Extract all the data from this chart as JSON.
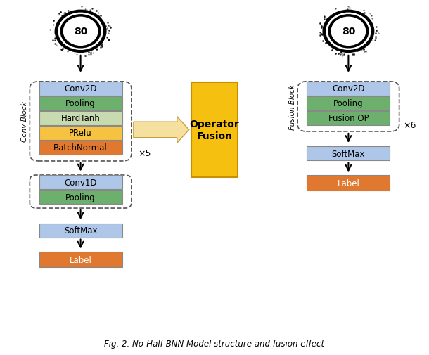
{
  "title": "Fig. 2. No-Half-BNN Model structure and fusion effect",
  "bg_color": "#ffffff",
  "left_block": {
    "label": "Conv Block",
    "boxes": [
      {
        "text": "Conv2D",
        "color": "#aec6e8"
      },
      {
        "text": "Pooling",
        "color": "#6db06e"
      },
      {
        "text": "HardTanh",
        "color": "#c8dab0"
      },
      {
        "text": "PRelu",
        "color": "#f5c242"
      },
      {
        "text": "BatchNormal",
        "color": "#e07830"
      }
    ],
    "x5_label": "×5"
  },
  "left_extra": {
    "boxes": [
      {
        "text": "Conv1D",
        "color": "#aec6e8"
      },
      {
        "text": "Pooling",
        "color": "#6db06e"
      }
    ]
  },
  "left_softmax": {
    "text": "SoftMax",
    "color": "#aec6e8"
  },
  "left_label": {
    "text": "Label",
    "color": "#e07830"
  },
  "middle_box": {
    "text": "Operator\nFusion",
    "color": "#f5c010",
    "border": "#c89000",
    "arrow_color": "#f5e0a0",
    "arrow_border": "#c8a040"
  },
  "right_block": {
    "label": "Fusion Block",
    "boxes": [
      {
        "text": "Conv2D",
        "color": "#aec6e8"
      },
      {
        "text": "Pooling",
        "color": "#6db06e"
      },
      {
        "text": "Fusion OP",
        "color": "#6db06e"
      }
    ],
    "x6_label": "×6"
  },
  "right_softmax": {
    "text": "SoftMax",
    "color": "#aec6e8"
  },
  "right_label": {
    "text": "Label",
    "color": "#e07830"
  },
  "arrow_color": "#000000",
  "dashed_border_color": "#555555"
}
